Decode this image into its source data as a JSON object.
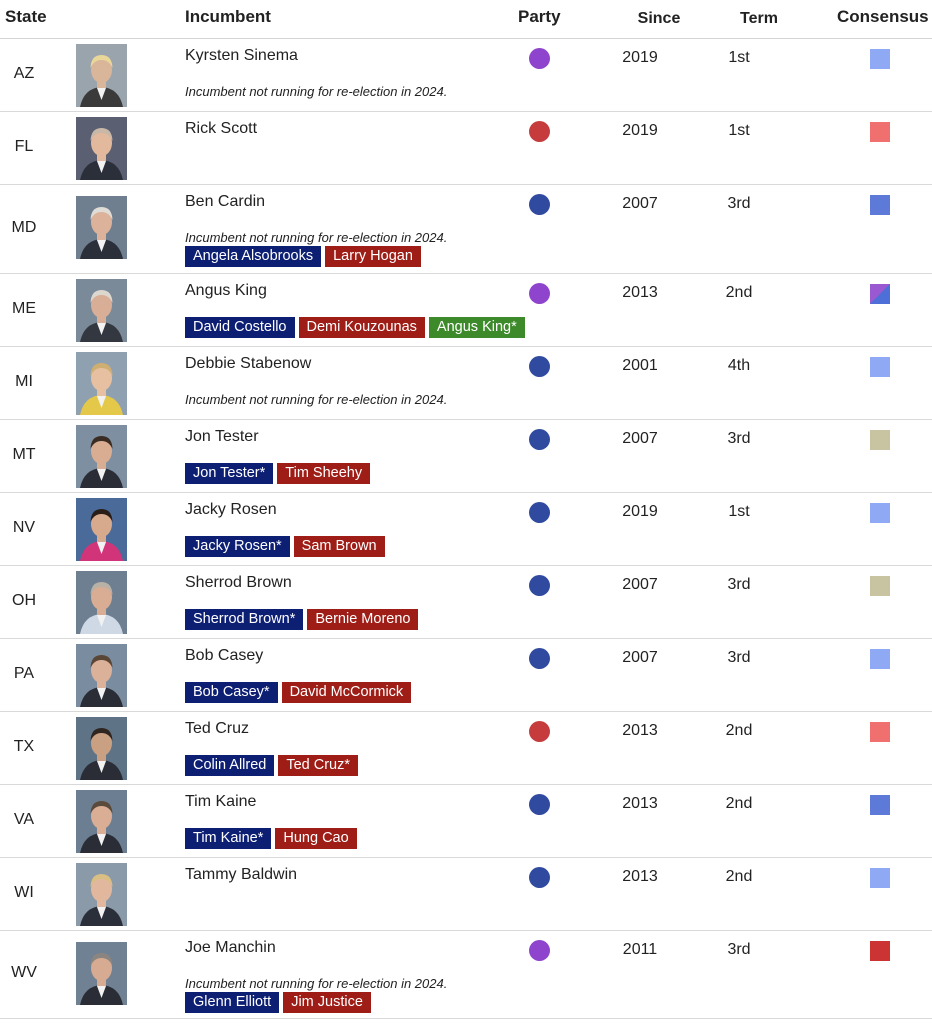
{
  "headers": {
    "state": "State",
    "incumbent": "Incumbent",
    "party": "Party",
    "since": "Since",
    "term": "Term",
    "consensus": "Consensus"
  },
  "colors": {
    "independent": "#8e44cc",
    "republican": "#c63c3c",
    "democrat": "#2f4a9e",
    "dem_tag": "#0d1f73",
    "rep_tag": "#9e1e17",
    "ind_tag": "#3d8a2a",
    "likely_dem": "#8fa9f5",
    "safe_dem": "#5d7ad8",
    "likely_rep": "#f07070",
    "safe_rep": "#cc3434",
    "tossup": "#c8c3a0",
    "dem_ind_split_a": "#9b59d1",
    "dem_ind_split_b": "#4f6fd8"
  },
  "rows": [
    {
      "state": "AZ",
      "name": "Kyrsten Sinema",
      "party": "independent",
      "since": "2019",
      "term": "1st",
      "consensus": "likely_dem",
      "note": "Incumbent not running for re-election in 2024.",
      "candidates": []
    },
    {
      "state": "FL",
      "name": "Rick Scott",
      "party": "republican",
      "since": "2019",
      "term": "1st",
      "consensus": "likely_rep",
      "note": "",
      "candidates": []
    },
    {
      "state": "MD",
      "name": "Ben Cardin",
      "party": "democrat",
      "since": "2007",
      "term": "3rd",
      "consensus": "safe_dem",
      "note": "Incumbent not running for re-election in 2024.",
      "candidates": [
        {
          "label": "Angela Alsobrooks",
          "party": "dem"
        },
        {
          "label": "Larry Hogan",
          "party": "rep"
        }
      ]
    },
    {
      "state": "ME",
      "name": "Angus King",
      "party": "independent",
      "since": "2013",
      "term": "2nd",
      "consensus": "split",
      "note": "",
      "candidates": [
        {
          "label": "David Costello",
          "party": "dem"
        },
        {
          "label": "Demi Kouzounas",
          "party": "rep"
        },
        {
          "label": "Angus King*",
          "party": "ind"
        }
      ]
    },
    {
      "state": "MI",
      "name": "Debbie Stabenow",
      "party": "democrat",
      "since": "2001",
      "term": "4th",
      "consensus": "likely_dem",
      "note": "Incumbent not running for re-election in 2024.",
      "candidates": []
    },
    {
      "state": "MT",
      "name": "Jon Tester",
      "party": "democrat",
      "since": "2007",
      "term": "3rd",
      "consensus": "tossup",
      "note": "",
      "candidates": [
        {
          "label": "Jon Tester*",
          "party": "dem"
        },
        {
          "label": "Tim Sheehy",
          "party": "rep"
        }
      ]
    },
    {
      "state": "NV",
      "name": "Jacky Rosen",
      "party": "democrat",
      "since": "2019",
      "term": "1st",
      "consensus": "likely_dem",
      "note": "",
      "candidates": [
        {
          "label": "Jacky Rosen*",
          "party": "dem"
        },
        {
          "label": "Sam Brown",
          "party": "rep"
        }
      ]
    },
    {
      "state": "OH",
      "name": "Sherrod Brown",
      "party": "democrat",
      "since": "2007",
      "term": "3rd",
      "consensus": "tossup",
      "note": "",
      "candidates": [
        {
          "label": "Sherrod Brown*",
          "party": "dem"
        },
        {
          "label": "Bernie Moreno",
          "party": "rep"
        }
      ]
    },
    {
      "state": "PA",
      "name": "Bob Casey",
      "party": "democrat",
      "since": "2007",
      "term": "3rd",
      "consensus": "likely_dem",
      "note": "",
      "candidates": [
        {
          "label": "Bob Casey*",
          "party": "dem"
        },
        {
          "label": "David McCormick",
          "party": "rep"
        }
      ]
    },
    {
      "state": "TX",
      "name": "Ted Cruz",
      "party": "republican",
      "since": "2013",
      "term": "2nd",
      "consensus": "likely_rep",
      "note": "",
      "candidates": [
        {
          "label": "Colin Allred",
          "party": "dem"
        },
        {
          "label": "Ted Cruz*",
          "party": "rep"
        }
      ]
    },
    {
      "state": "VA",
      "name": "Tim Kaine",
      "party": "democrat",
      "since": "2013",
      "term": "2nd",
      "consensus": "safe_dem",
      "note": "",
      "candidates": [
        {
          "label": "Tim Kaine*",
          "party": "dem"
        },
        {
          "label": "Hung Cao",
          "party": "rep"
        }
      ]
    },
    {
      "state": "WI",
      "name": "Tammy Baldwin",
      "party": "democrat",
      "since": "2013",
      "term": "2nd",
      "consensus": "likely_dem",
      "note": "",
      "candidates": []
    },
    {
      "state": "WV",
      "name": "Joe Manchin",
      "party": "independent",
      "since": "2011",
      "term": "3rd",
      "consensus": "safe_rep",
      "note": "Incumbent not running for re-election in 2024.",
      "candidates": [
        {
          "label": "Glenn Elliott",
          "party": "dem"
        },
        {
          "label": "Jim Justice",
          "party": "rep"
        }
      ]
    }
  ]
}
